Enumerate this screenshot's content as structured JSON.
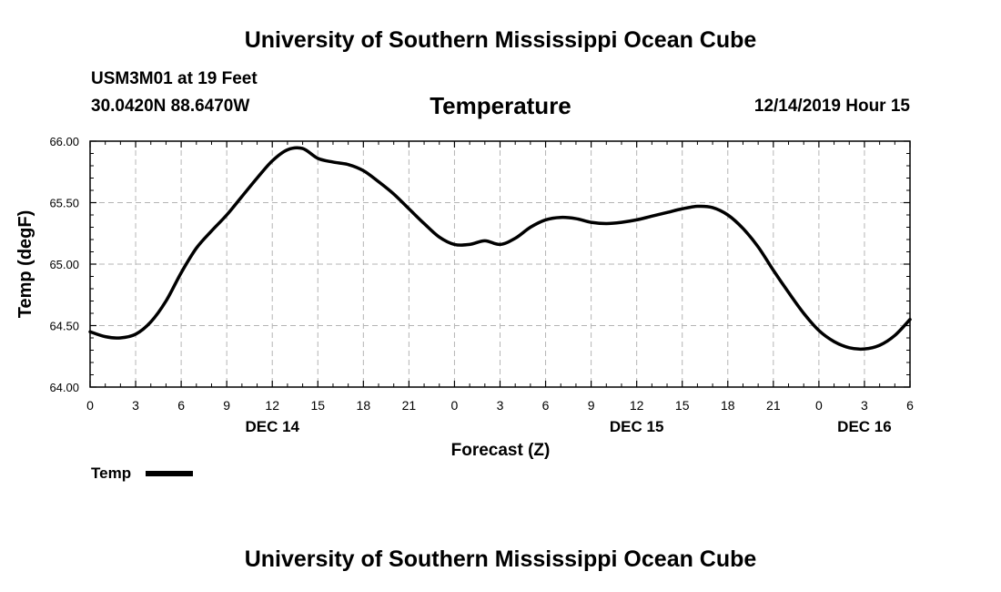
{
  "header": {
    "title": "University of Southern Mississippi Ocean Cube",
    "station": "USM3M01 at 19 Feet",
    "coords": "30.0420N 88.6470W",
    "variable": "Temperature",
    "timestamp": "12/14/2019 Hour 15"
  },
  "footer": {
    "title": "University of Southern Mississippi Ocean Cube"
  },
  "chart_data": {
    "type": "line",
    "title": "Temperature",
    "xlabel": "Forecast (Z)",
    "ylabel": "Temp (degF)",
    "ylim": [
      64.0,
      66.0
    ],
    "xlim": [
      0,
      54
    ],
    "grid": true,
    "x_unit": "hours since DEC 14 00Z",
    "x_ticks": [
      0,
      3,
      6,
      9,
      12,
      15,
      18,
      21,
      24,
      27,
      30,
      33,
      36,
      39,
      42,
      45,
      48,
      51,
      54
    ],
    "x_tick_labels": [
      "0",
      "3",
      "6",
      "9",
      "12",
      "15",
      "18",
      "21",
      "0",
      "3",
      "6",
      "9",
      "12",
      "15",
      "18",
      "21",
      "0",
      "3",
      "6"
    ],
    "y_ticks": [
      64.0,
      64.5,
      65.0,
      65.5,
      66.0
    ],
    "y_tick_labels": [
      "64.00",
      "64.50",
      "65.00",
      "65.50",
      "66.00"
    ],
    "date_labels": [
      {
        "x": 12,
        "label": "DEC 14"
      },
      {
        "x": 36,
        "label": "DEC 15"
      },
      {
        "x": 51,
        "label": "DEC 16"
      }
    ],
    "legend": {
      "label": "Temp",
      "position": "bottom-left"
    },
    "series": [
      {
        "name": "Temp",
        "color": "#000000",
        "x": [
          0,
          1,
          2,
          3,
          4,
          5,
          6,
          7,
          8,
          9,
          10,
          11,
          12,
          13,
          14,
          15,
          16,
          17,
          18,
          19,
          20,
          21,
          22,
          23,
          24,
          25,
          26,
          27,
          28,
          29,
          30,
          31,
          32,
          33,
          34,
          35,
          36,
          37,
          38,
          39,
          40,
          41,
          42,
          43,
          44,
          45,
          46,
          47,
          48,
          49,
          50,
          51,
          52,
          53,
          54
        ],
        "values": [
          64.45,
          64.41,
          64.4,
          64.43,
          64.53,
          64.7,
          64.93,
          65.13,
          65.27,
          65.4,
          65.55,
          65.7,
          65.84,
          65.93,
          65.94,
          65.86,
          65.83,
          65.81,
          65.76,
          65.67,
          65.57,
          65.45,
          65.33,
          65.22,
          65.16,
          65.16,
          65.19,
          65.16,
          65.21,
          65.3,
          65.36,
          65.38,
          65.37,
          65.34,
          65.33,
          65.34,
          65.36,
          65.39,
          65.42,
          65.45,
          65.47,
          65.46,
          65.4,
          65.29,
          65.14,
          64.95,
          64.77,
          64.6,
          64.46,
          64.37,
          64.32,
          64.31,
          64.34,
          64.42,
          64.55
        ]
      }
    ]
  }
}
